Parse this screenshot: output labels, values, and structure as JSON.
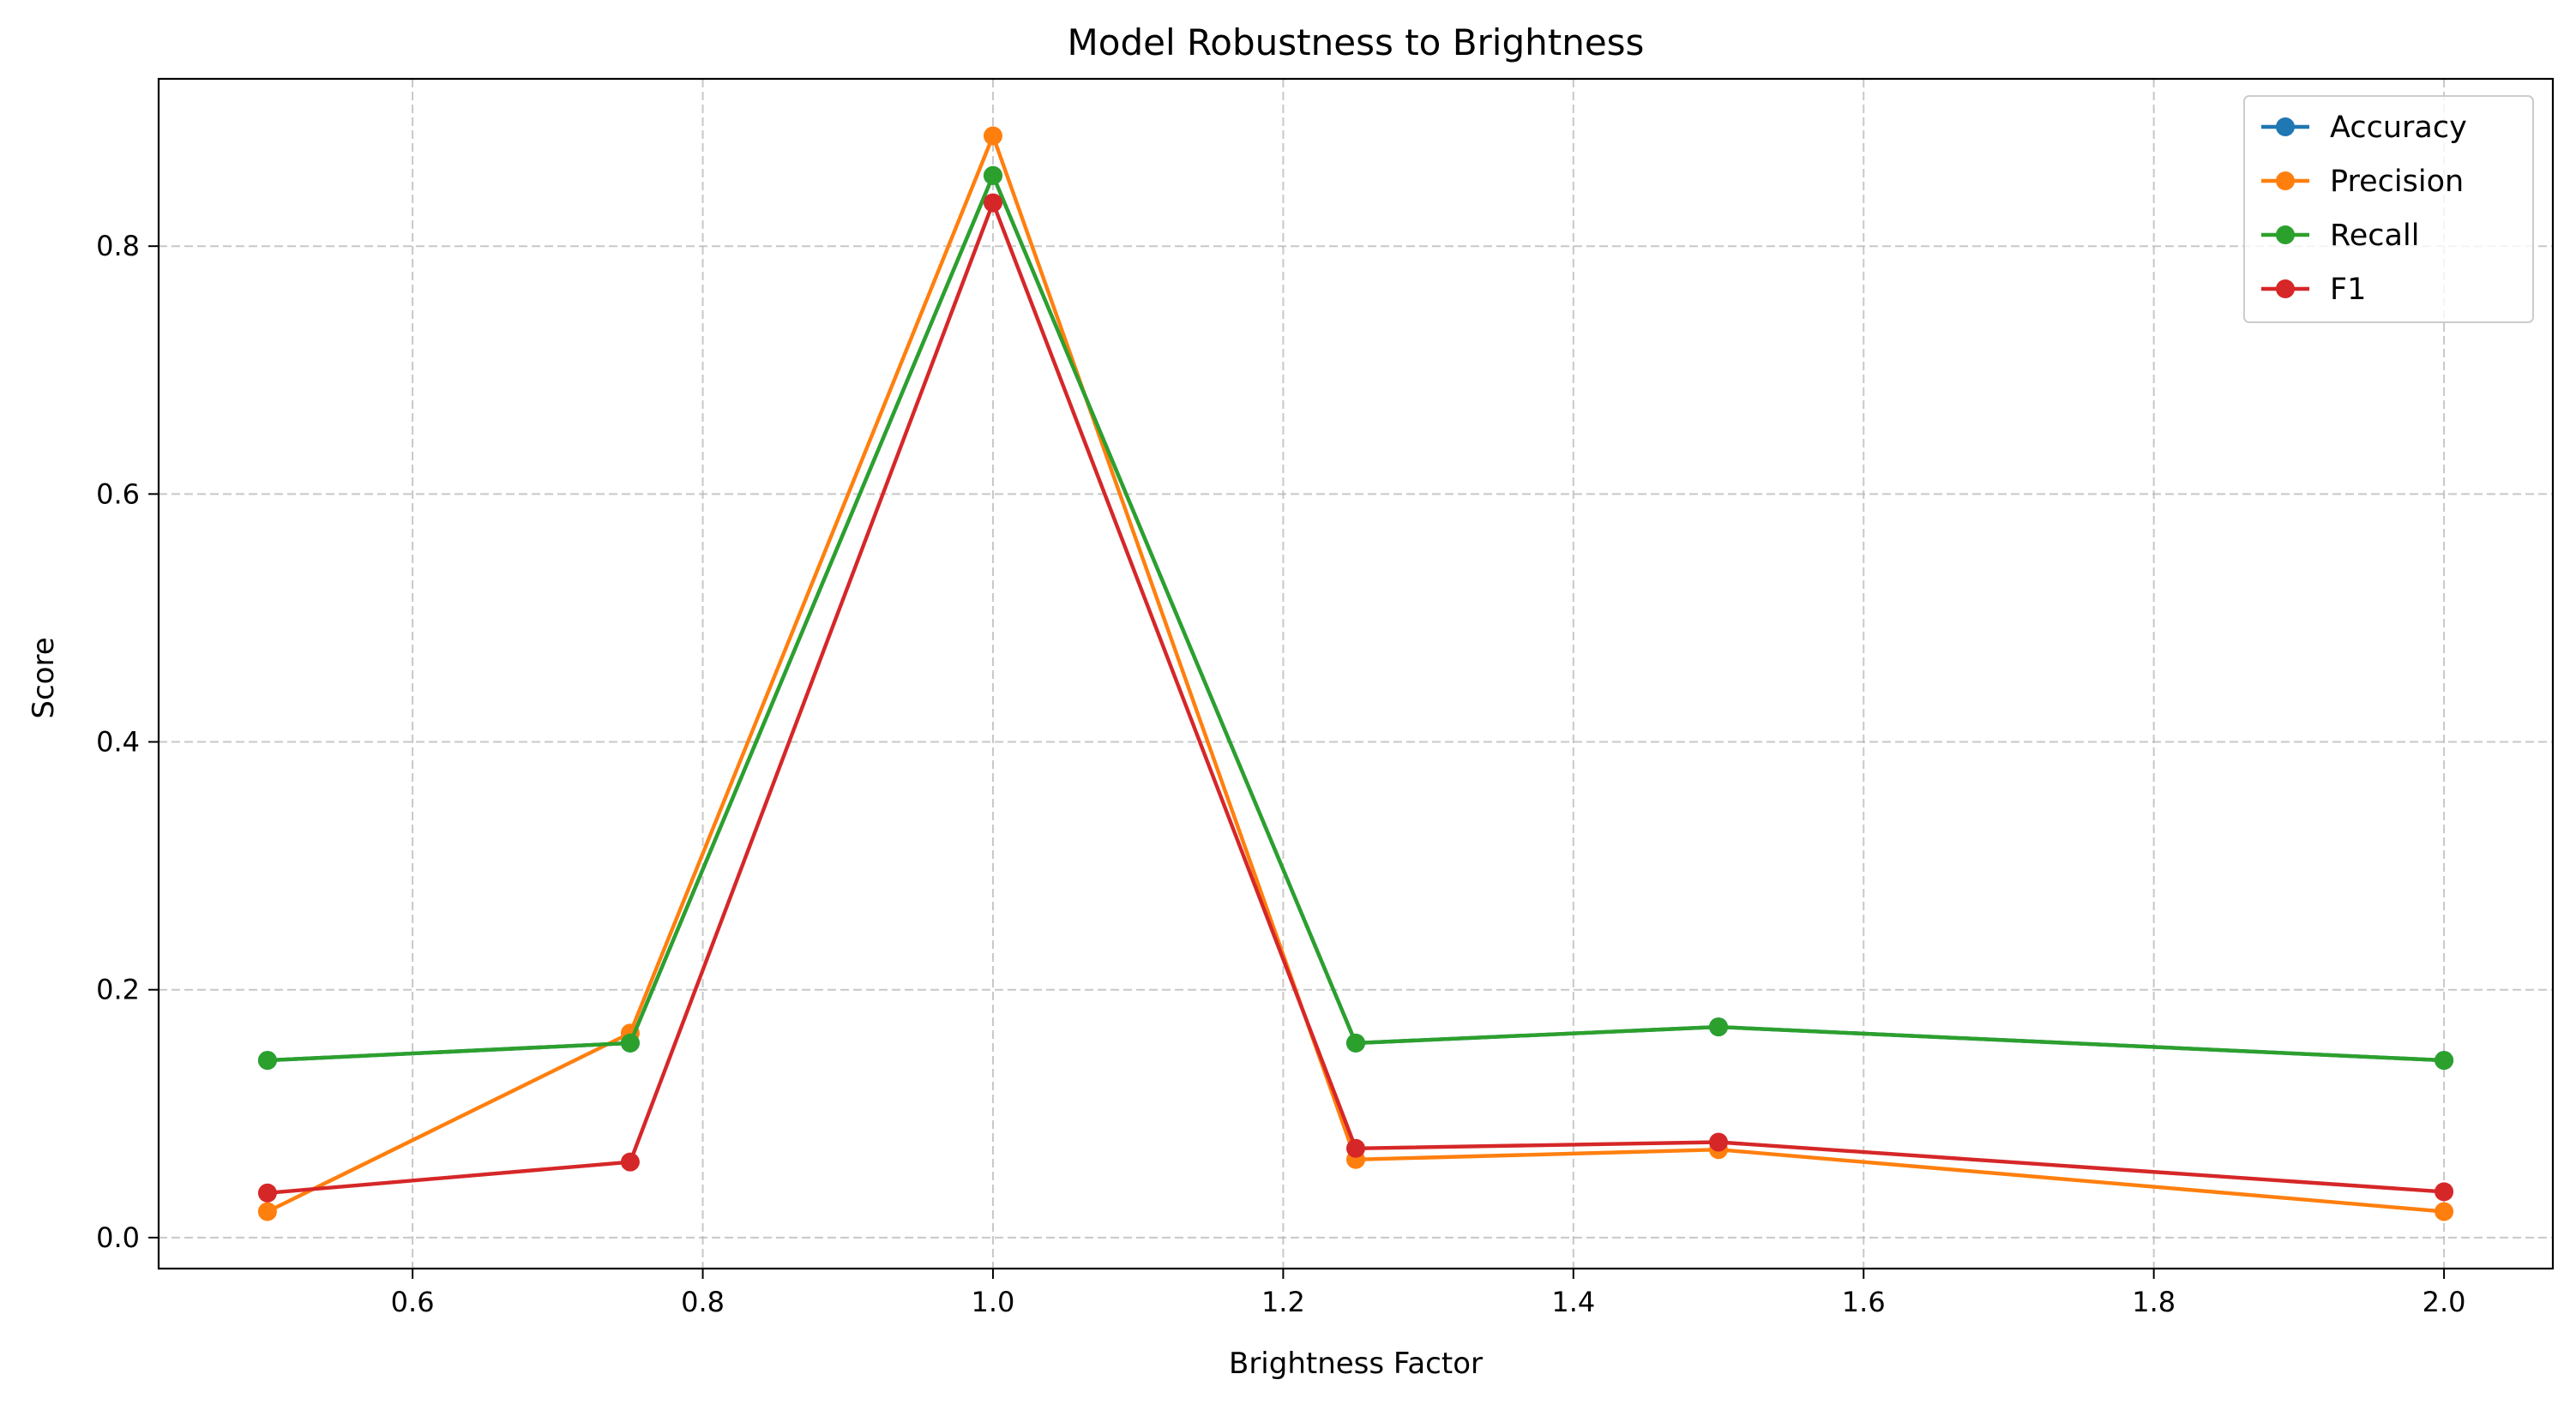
{
  "chart_data": {
    "type": "line",
    "title": "Model Robustness to Brightness",
    "xlabel": "Brightness Factor",
    "ylabel": "Score",
    "xlim": [
      0.425,
      2.075
    ],
    "ylim": [
      -0.025,
      0.935
    ],
    "x_ticks": [
      0.6,
      0.8,
      1.0,
      1.2,
      1.4,
      1.6,
      1.8,
      2.0
    ],
    "x_tick_labels": [
      "0.6",
      "0.8",
      "1.0",
      "1.2",
      "1.4",
      "1.6",
      "1.8",
      "2.0"
    ],
    "y_ticks": [
      0.0,
      0.2,
      0.4,
      0.6,
      0.8
    ],
    "y_tick_labels": [
      "0.0",
      "0.2",
      "0.4",
      "0.6",
      "0.8"
    ],
    "grid": true,
    "legend_position": "top-right",
    "x": [
      0.5,
      0.75,
      1.0,
      1.25,
      1.5,
      2.0
    ],
    "series": [
      {
        "name": "Accuracy",
        "color": "#1f77b4",
        "values": [
          0.143,
          0.157,
          0.857,
          0.157,
          0.17,
          0.143
        ]
      },
      {
        "name": "Precision",
        "color": "#ff7f0e",
        "values": [
          0.021,
          0.165,
          0.889,
          0.063,
          0.071,
          0.021
        ]
      },
      {
        "name": "Recall",
        "color": "#2ca02c",
        "values": [
          0.143,
          0.157,
          0.857,
          0.157,
          0.17,
          0.143
        ]
      },
      {
        "name": "F1",
        "color": "#d62728",
        "values": [
          0.036,
          0.061,
          0.835,
          0.072,
          0.077,
          0.037
        ]
      }
    ]
  }
}
